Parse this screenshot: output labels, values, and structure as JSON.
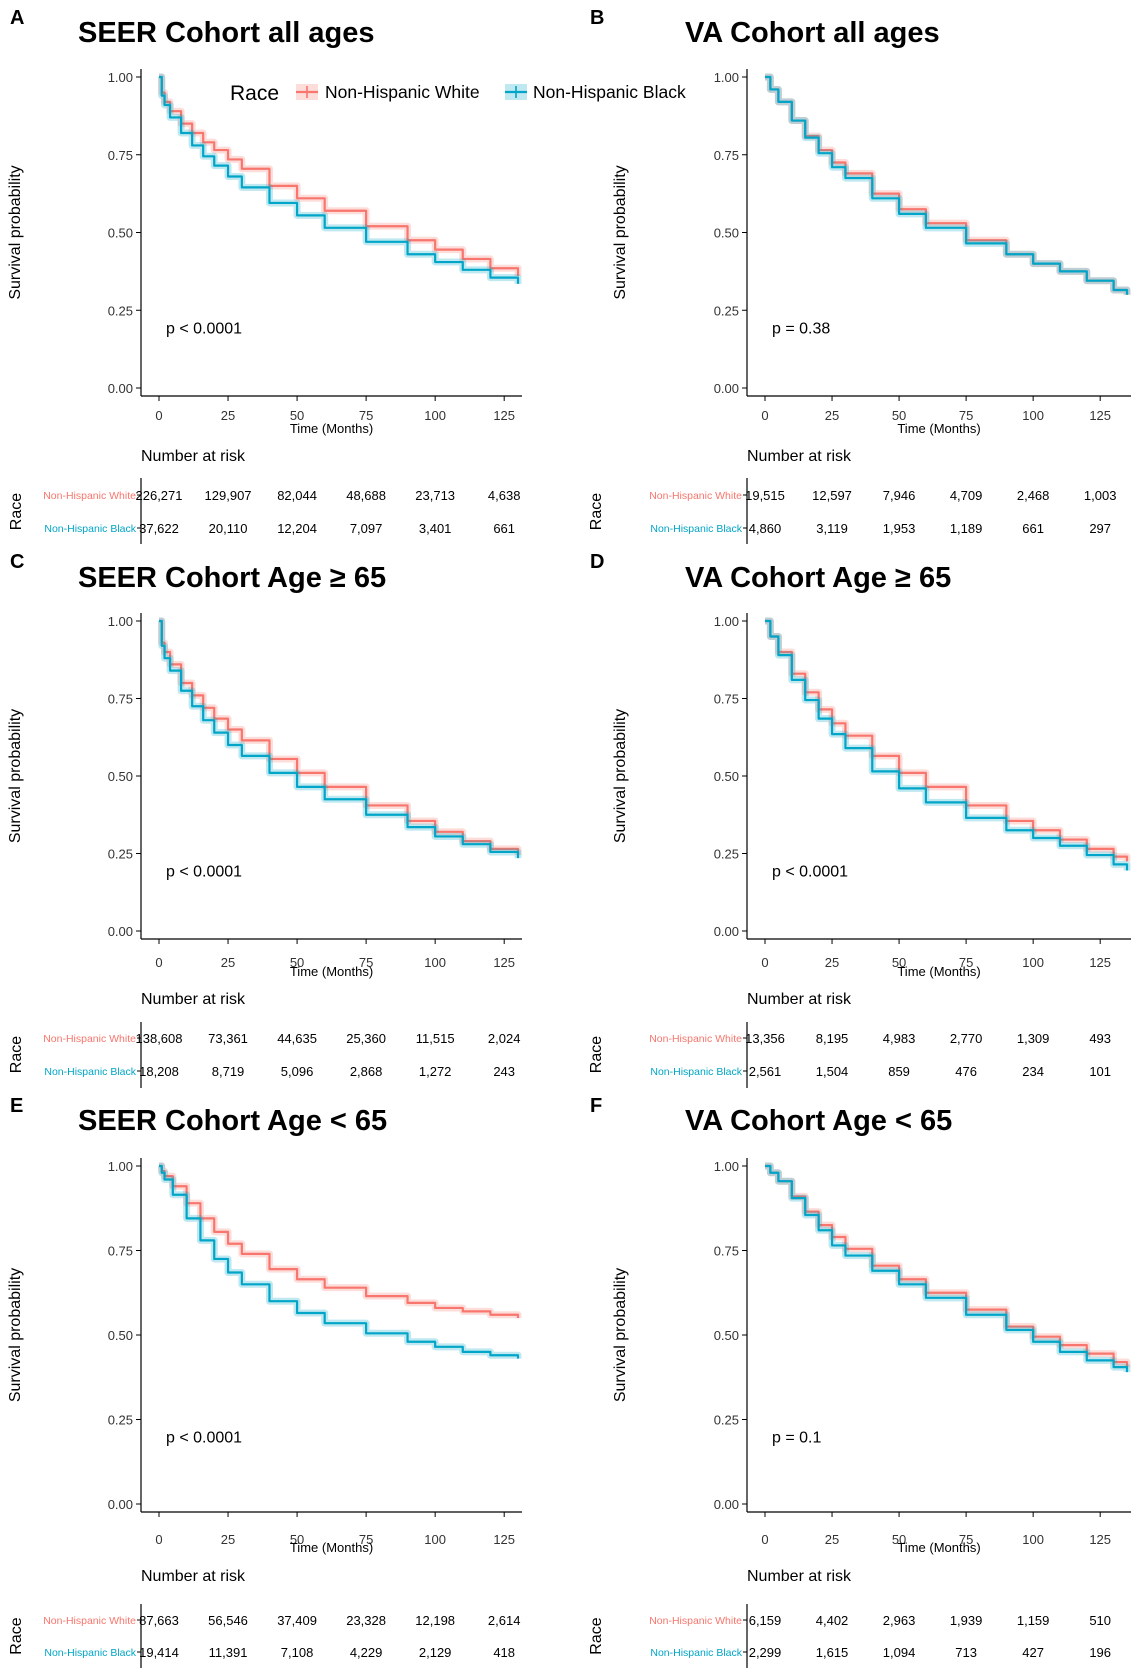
{
  "colors": {
    "white_series": "#F8766D",
    "black_series": "#00A5C7",
    "axis": "#000000"
  },
  "legend": {
    "title": "Race",
    "entries": [
      "Non-Hispanic White",
      "Non-Hispanic Black"
    ],
    "placement": "top, inside panel A"
  },
  "risk_table": {
    "title": "Number at risk",
    "row_axis_label": "Race",
    "row_labels": [
      "Non-Hispanic White",
      "Non-Hispanic Black"
    ]
  },
  "chart_data": [
    {
      "panel": "A",
      "title": "SEER Cohort all ages",
      "type": "line",
      "xlabel": "Time (Months)",
      "ylabel": "Survival probability",
      "xlim": [
        0,
        130
      ],
      "ylim": [
        0,
        1
      ],
      "xticks": [
        0,
        25,
        50,
        75,
        100,
        125
      ],
      "yticks": [
        "0.00",
        "0.25",
        "0.50",
        "0.75",
        "1.00"
      ],
      "p_value": "p < 0.0001",
      "series": [
        {
          "name": "Non-Hispanic White",
          "x": [
            0,
            1,
            2,
            4,
            8,
            12,
            16,
            20,
            25,
            30,
            40,
            50,
            60,
            75,
            90,
            100,
            110,
            120,
            130
          ],
          "y": [
            1.0,
            0.95,
            0.92,
            0.89,
            0.85,
            0.82,
            0.79,
            0.765,
            0.735,
            0.705,
            0.65,
            0.61,
            0.57,
            0.52,
            0.475,
            0.445,
            0.415,
            0.385,
            0.36
          ]
        },
        {
          "name": "Non-Hispanic Black",
          "x": [
            0,
            1,
            2,
            4,
            8,
            12,
            16,
            20,
            25,
            30,
            40,
            50,
            60,
            75,
            90,
            100,
            110,
            120,
            130
          ],
          "y": [
            1.0,
            0.94,
            0.91,
            0.87,
            0.82,
            0.78,
            0.745,
            0.715,
            0.68,
            0.645,
            0.595,
            0.555,
            0.515,
            0.47,
            0.43,
            0.405,
            0.38,
            0.355,
            0.335
          ]
        }
      ],
      "risk": {
        "times": [
          0,
          25,
          50,
          75,
          100,
          125
        ],
        "rows": [
          [
            "226,271",
            "129,907",
            "82,044",
            "48,688",
            "23,713",
            "4,638"
          ],
          [
            "37,622",
            "20,110",
            "12,204",
            "7,097",
            "3,401",
            "661"
          ]
        ]
      }
    },
    {
      "panel": "B",
      "title": "VA Cohort all ages",
      "type": "line",
      "xlabel": "Time (Months)",
      "ylabel": "Survival probability",
      "xlim": [
        0,
        135
      ],
      "ylim": [
        0,
        1
      ],
      "xticks": [
        0,
        25,
        50,
        75,
        100,
        125
      ],
      "yticks": [
        "0.00",
        "0.25",
        "0.50",
        "0.75",
        "1.00"
      ],
      "p_value": "p = 0.38",
      "series": [
        {
          "name": "Non-Hispanic White",
          "x": [
            0,
            2,
            5,
            10,
            15,
            20,
            25,
            30,
            40,
            50,
            60,
            75,
            90,
            100,
            110,
            120,
            130,
            135
          ],
          "y": [
            1.0,
            0.96,
            0.92,
            0.86,
            0.81,
            0.765,
            0.725,
            0.69,
            0.625,
            0.575,
            0.53,
            0.475,
            0.43,
            0.4,
            0.375,
            0.345,
            0.315,
            0.3
          ]
        },
        {
          "name": "Non-Hispanic Black",
          "x": [
            0,
            2,
            5,
            10,
            15,
            20,
            25,
            30,
            40,
            50,
            60,
            75,
            90,
            100,
            110,
            120,
            130,
            135
          ],
          "y": [
            1.0,
            0.96,
            0.92,
            0.86,
            0.805,
            0.755,
            0.71,
            0.675,
            0.61,
            0.56,
            0.515,
            0.465,
            0.43,
            0.4,
            0.375,
            0.345,
            0.315,
            0.3
          ]
        }
      ],
      "risk": {
        "times": [
          0,
          25,
          50,
          75,
          100,
          125
        ],
        "rows": [
          [
            "19,515",
            "12,597",
            "7,946",
            "4,709",
            "2,468",
            "1,003"
          ],
          [
            "4,860",
            "3,119",
            "1,953",
            "1,189",
            "661",
            "297"
          ]
        ]
      }
    },
    {
      "panel": "C",
      "title": "SEER Cohort Age ≥ 65",
      "type": "line",
      "xlabel": "Time (Months)",
      "ylabel": "Survival probability",
      "xlim": [
        0,
        130
      ],
      "ylim": [
        0,
        1
      ],
      "xticks": [
        0,
        25,
        50,
        75,
        100,
        125
      ],
      "yticks": [
        "0.00",
        "0.25",
        "0.50",
        "0.75",
        "1.00"
      ],
      "p_value": "p < 0.0001",
      "series": [
        {
          "name": "Non-Hispanic White",
          "x": [
            0,
            1,
            2,
            4,
            8,
            12,
            16,
            20,
            25,
            30,
            40,
            50,
            60,
            75,
            90,
            100,
            110,
            120,
            130
          ],
          "y": [
            1.0,
            0.93,
            0.9,
            0.86,
            0.8,
            0.76,
            0.72,
            0.685,
            0.65,
            0.615,
            0.555,
            0.51,
            0.465,
            0.405,
            0.355,
            0.32,
            0.29,
            0.265,
            0.245
          ]
        },
        {
          "name": "Non-Hispanic Black",
          "x": [
            0,
            1,
            2,
            4,
            8,
            12,
            16,
            20,
            25,
            30,
            40,
            50,
            60,
            75,
            90,
            100,
            110,
            120,
            130
          ],
          "y": [
            1.0,
            0.92,
            0.88,
            0.84,
            0.775,
            0.725,
            0.68,
            0.64,
            0.6,
            0.565,
            0.51,
            0.465,
            0.425,
            0.375,
            0.335,
            0.305,
            0.28,
            0.255,
            0.235
          ]
        }
      ],
      "risk": {
        "times": [
          0,
          25,
          50,
          75,
          100,
          125
        ],
        "rows": [
          [
            "138,608",
            "73,361",
            "44,635",
            "25,360",
            "11,515",
            "2,024"
          ],
          [
            "18,208",
            "8,719",
            "5,096",
            "2,868",
            "1,272",
            "243"
          ]
        ]
      }
    },
    {
      "panel": "D",
      "title": "VA Cohort Age ≥ 65",
      "type": "line",
      "xlabel": "Time (Months)",
      "ylabel": "Survival probability",
      "xlim": [
        0,
        135
      ],
      "ylim": [
        0,
        1
      ],
      "xticks": [
        0,
        25,
        50,
        75,
        100,
        125
      ],
      "yticks": [
        "0.00",
        "0.25",
        "0.50",
        "0.75",
        "1.00"
      ],
      "p_value": "p < 0.0001",
      "series": [
        {
          "name": "Non-Hispanic White",
          "x": [
            0,
            2,
            5,
            10,
            15,
            20,
            25,
            30,
            40,
            50,
            60,
            75,
            90,
            100,
            110,
            120,
            130,
            135
          ],
          "y": [
            1.0,
            0.95,
            0.9,
            0.83,
            0.77,
            0.715,
            0.67,
            0.63,
            0.565,
            0.51,
            0.465,
            0.405,
            0.355,
            0.325,
            0.295,
            0.265,
            0.24,
            0.225
          ]
        },
        {
          "name": "Non-Hispanic Black",
          "x": [
            0,
            2,
            5,
            10,
            15,
            20,
            25,
            30,
            40,
            50,
            60,
            75,
            90,
            100,
            110,
            120,
            130,
            135
          ],
          "y": [
            1.0,
            0.95,
            0.89,
            0.81,
            0.745,
            0.685,
            0.635,
            0.59,
            0.515,
            0.46,
            0.415,
            0.365,
            0.325,
            0.3,
            0.275,
            0.245,
            0.215,
            0.195
          ]
        }
      ],
      "risk": {
        "times": [
          0,
          25,
          50,
          75,
          100,
          125
        ],
        "rows": [
          [
            "13,356",
            "8,195",
            "4,983",
            "2,770",
            "1,309",
            "493"
          ],
          [
            "2,561",
            "1,504",
            "859",
            "476",
            "234",
            "101"
          ]
        ]
      }
    },
    {
      "panel": "E",
      "title": "SEER Cohort Age < 65",
      "type": "line",
      "xlabel": "Time (Months)",
      "ylabel": "Survival probability",
      "xlim": [
        0,
        130
      ],
      "ylim": [
        0,
        1
      ],
      "xticks": [
        0,
        25,
        50,
        75,
        100,
        125
      ],
      "yticks": [
        "0.00",
        "0.25",
        "0.50",
        "0.75",
        "1.00"
      ],
      "p_value": "p < 0.0001",
      "series": [
        {
          "name": "Non-Hispanic White",
          "x": [
            0,
            1,
            2,
            5,
            10,
            15,
            20,
            25,
            30,
            40,
            50,
            60,
            75,
            90,
            100,
            110,
            120,
            130
          ],
          "y": [
            1.0,
            0.985,
            0.97,
            0.94,
            0.89,
            0.845,
            0.805,
            0.77,
            0.74,
            0.695,
            0.665,
            0.64,
            0.615,
            0.595,
            0.58,
            0.57,
            0.56,
            0.55
          ]
        },
        {
          "name": "Non-Hispanic Black",
          "x": [
            0,
            1,
            2,
            5,
            10,
            15,
            20,
            25,
            30,
            40,
            50,
            60,
            75,
            90,
            100,
            110,
            120,
            130
          ],
          "y": [
            1.0,
            0.98,
            0.96,
            0.915,
            0.845,
            0.78,
            0.725,
            0.685,
            0.65,
            0.6,
            0.565,
            0.535,
            0.505,
            0.48,
            0.465,
            0.45,
            0.44,
            0.43
          ]
        }
      ],
      "risk": {
        "times": [
          0,
          25,
          50,
          75,
          100,
          125
        ],
        "rows": [
          [
            "87,663",
            "56,546",
            "37,409",
            "23,328",
            "12,198",
            "2,614"
          ],
          [
            "19,414",
            "11,391",
            "7,108",
            "4,229",
            "2,129",
            "418"
          ]
        ]
      }
    },
    {
      "panel": "F",
      "title": "VA Cohort Age < 65",
      "type": "line",
      "xlabel": "Time (Months)",
      "ylabel": "Survival probability",
      "xlim": [
        0,
        135
      ],
      "ylim": [
        0,
        1
      ],
      "xticks": [
        0,
        25,
        50,
        75,
        100,
        125
      ],
      "yticks": [
        "0.00",
        "0.25",
        "0.50",
        "0.75",
        "1.00"
      ],
      "p_value": "p = 0.1",
      "series": [
        {
          "name": "Non-Hispanic White",
          "x": [
            0,
            2,
            5,
            10,
            15,
            20,
            25,
            30,
            40,
            50,
            60,
            75,
            90,
            100,
            110,
            120,
            130,
            135
          ],
          "y": [
            1.0,
            0.98,
            0.955,
            0.91,
            0.865,
            0.825,
            0.79,
            0.755,
            0.705,
            0.665,
            0.625,
            0.575,
            0.525,
            0.495,
            0.47,
            0.445,
            0.42,
            0.405
          ]
        },
        {
          "name": "Non-Hispanic Black",
          "x": [
            0,
            2,
            5,
            10,
            15,
            20,
            25,
            30,
            40,
            50,
            60,
            75,
            90,
            100,
            110,
            120,
            130,
            135
          ],
          "y": [
            1.0,
            0.98,
            0.955,
            0.905,
            0.855,
            0.81,
            0.765,
            0.735,
            0.69,
            0.65,
            0.61,
            0.56,
            0.515,
            0.48,
            0.45,
            0.425,
            0.405,
            0.39
          ]
        }
      ],
      "risk": {
        "times": [
          0,
          25,
          50,
          75,
          100,
          125
        ],
        "rows": [
          [
            "6,159",
            "4,402",
            "2,963",
            "1,939",
            "1,159",
            "510"
          ],
          [
            "2,299",
            "1,615",
            "1,094",
            "713",
            "427",
            "196"
          ]
        ]
      }
    }
  ]
}
